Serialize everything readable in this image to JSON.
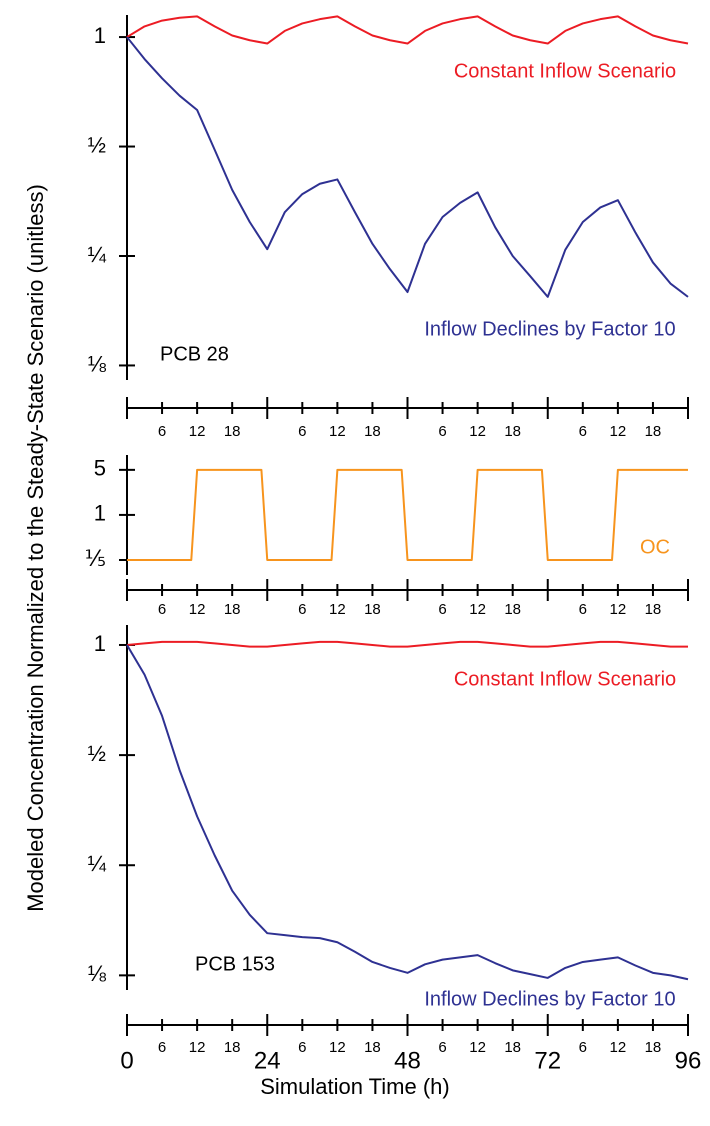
{
  "ylabel": "Modeled Concentration Normalized to the Steady-State Scenario (unitless)",
  "chart_data": [
    {
      "type": "line",
      "annotation": "PCB 28",
      "log_scale": true,
      "x": [
        0,
        3,
        6,
        9,
        12,
        15,
        18,
        21,
        24,
        27,
        30,
        33,
        36,
        39,
        42,
        45,
        48,
        51,
        54,
        57,
        60,
        63,
        66,
        69,
        72,
        75,
        78,
        81,
        84,
        87,
        90,
        93,
        96
      ],
      "xlim": [
        0,
        96
      ],
      "xticks": [
        {
          "value": 0,
          "label": null
        },
        6,
        12,
        18,
        {
          "value": 24,
          "label": null
        },
        {
          "value": 30,
          "label": "6"
        },
        {
          "value": 36,
          "label": "12"
        },
        {
          "value": 42,
          "label": "18"
        },
        {
          "value": 48,
          "label": null
        },
        {
          "value": 54,
          "label": "6"
        },
        {
          "value": 60,
          "label": "12"
        },
        {
          "value": 66,
          "label": "18"
        },
        {
          "value": 72,
          "label": null
        },
        {
          "value": 78,
          "label": "6"
        },
        {
          "value": 84,
          "label": "12"
        },
        {
          "value": 90,
          "label": "18"
        },
        {
          "value": 96,
          "label": null
        }
      ],
      "ylim": [
        0.114,
        1.15
      ],
      "yticks": [
        1,
        {
          "value": 0.5,
          "label": "½"
        },
        {
          "value": 0.25,
          "label": "¼"
        },
        {
          "value": 0.125,
          "label": "⅛"
        }
      ],
      "series": [
        {
          "name": "Constant Inflow Scenario",
          "color": "#ec1c24",
          "values": [
            1.0,
            1.07,
            1.11,
            1.13,
            1.14,
            1.07,
            1.01,
            0.98,
            0.96,
            1.04,
            1.09,
            1.12,
            1.14,
            1.07,
            1.01,
            0.98,
            0.96,
            1.04,
            1.09,
            1.12,
            1.14,
            1.07,
            1.01,
            0.98,
            0.96,
            1.04,
            1.09,
            1.12,
            1.14,
            1.07,
            1.01,
            0.98,
            0.96
          ]
        },
        {
          "name": "Inflow Declines by Factor 10",
          "color": "#2e3192",
          "values": [
            1,
            0.87,
            0.77,
            0.69,
            0.63,
            0.49,
            0.38,
            0.31,
            0.261,
            0.33,
            0.37,
            0.395,
            0.406,
            0.33,
            0.27,
            0.23,
            0.199,
            0.27,
            0.32,
            0.35,
            0.374,
            0.3,
            0.25,
            0.22,
            0.193,
            0.26,
            0.31,
            0.34,
            0.356,
            0.29,
            0.24,
            0.21,
            0.193
          ]
        }
      ]
    },
    {
      "type": "line",
      "log_scale": true,
      "x": [
        0,
        11,
        12,
        23,
        24,
        35,
        36,
        47,
        48,
        59,
        60,
        71,
        72,
        83,
        84,
        96
      ],
      "xlim": [
        0,
        96
      ],
      "xticks": [
        {
          "value": 0,
          "label": null
        },
        6,
        12,
        18,
        {
          "value": 24,
          "label": null
        },
        {
          "value": 30,
          "label": "6"
        },
        {
          "value": 36,
          "label": "12"
        },
        {
          "value": 42,
          "label": "18"
        },
        {
          "value": 48,
          "label": null
        },
        {
          "value": 54,
          "label": "6"
        },
        {
          "value": 60,
          "label": "12"
        },
        {
          "value": 66,
          "label": "18"
        },
        {
          "value": 72,
          "label": null
        },
        {
          "value": 78,
          "label": "6"
        },
        {
          "value": 84,
          "label": "12"
        },
        {
          "value": 90,
          "label": "18"
        },
        {
          "value": 96,
          "label": null
        }
      ],
      "ylim": [
        0.117,
        8.5
      ],
      "yticks": [
        5,
        1,
        {
          "value": 0.2,
          "label": "⅕"
        }
      ],
      "series": [
        {
          "name": "OC",
          "color": "#f7941d",
          "values": [
            0.2,
            0.2,
            5,
            5,
            0.2,
            0.2,
            5,
            5,
            0.2,
            0.2,
            5,
            5,
            0.2,
            0.2,
            5,
            5
          ]
        }
      ]
    },
    {
      "type": "line",
      "annotation": "PCB 153",
      "log_scale": true,
      "x": [
        0,
        3,
        6,
        9,
        12,
        15,
        18,
        21,
        24,
        27,
        30,
        33,
        36,
        39,
        42,
        45,
        48,
        51,
        54,
        57,
        60,
        63,
        66,
        69,
        72,
        75,
        78,
        81,
        84,
        87,
        90,
        93,
        96
      ],
      "xlim": [
        0,
        96
      ],
      "xlabel": "Simulation Time (h)",
      "xticks": [
        0,
        6,
        12,
        18,
        24,
        {
          "value": 30,
          "label": "6"
        },
        {
          "value": 36,
          "label": "12"
        },
        {
          "value": 42,
          "label": "18"
        },
        48,
        {
          "value": 54,
          "label": "6"
        },
        {
          "value": 60,
          "label": "12"
        },
        {
          "value": 66,
          "label": "18"
        },
        72,
        {
          "value": 78,
          "label": "6"
        },
        {
          "value": 84,
          "label": "12"
        },
        {
          "value": 90,
          "label": "18"
        },
        96
      ],
      "ylim": [
        0.114,
        1.134
      ],
      "yticks": [
        1,
        {
          "value": 0.5,
          "label": "½"
        },
        {
          "value": 0.25,
          "label": "¼"
        },
        {
          "value": 0.125,
          "label": "⅛"
        }
      ],
      "series": [
        {
          "name": "Constant Inflow Scenario",
          "color": "#ec1c24",
          "values": [
            1.0,
            1.01,
            1.02,
            1.02,
            1.02,
            1.01,
            1.0,
            0.99,
            0.99,
            1.0,
            1.01,
            1.02,
            1.02,
            1.01,
            1.0,
            0.99,
            0.99,
            1.0,
            1.01,
            1.02,
            1.02,
            1.01,
            1.0,
            0.99,
            0.99,
            1.0,
            1.01,
            1.02,
            1.02,
            1.01,
            1.0,
            0.99,
            0.99
          ]
        },
        {
          "name": "Inflow Declines by Factor 10",
          "color": "#2e3192",
          "values": [
            1,
            0.83,
            0.64,
            0.455,
            0.34,
            0.266,
            0.213,
            0.183,
            0.163,
            0.161,
            0.159,
            0.158,
            0.154,
            0.145,
            0.136,
            0.131,
            0.127,
            0.134,
            0.138,
            0.14,
            0.142,
            0.135,
            0.129,
            0.126,
            0.123,
            0.131,
            0.136,
            0.138,
            0.14,
            0.133,
            0.127,
            0.125,
            0.122
          ]
        }
      ]
    }
  ]
}
